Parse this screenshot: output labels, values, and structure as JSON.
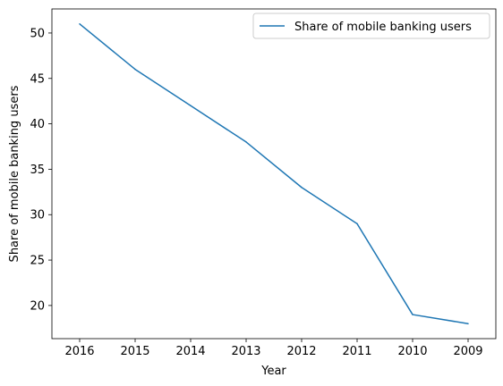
{
  "chart_data": {
    "type": "line",
    "categories": [
      "2016",
      "2015",
      "2014",
      "2013",
      "2012",
      "2011",
      "2010",
      "2009"
    ],
    "series": [
      {
        "name": "Share of mobile banking users",
        "values": [
          51,
          46,
          42,
          38,
          33,
          29,
          19,
          18
        ]
      }
    ],
    "xlabel": "Year",
    "ylabel": "Share of mobile banking users",
    "ylim": [
      16.35,
      52.65
    ],
    "yticks": [
      20,
      25,
      30,
      35,
      40,
      45,
      50
    ],
    "grid": false,
    "legend_position": "top-right",
    "colors": {
      "series": "#1f77b4"
    }
  }
}
